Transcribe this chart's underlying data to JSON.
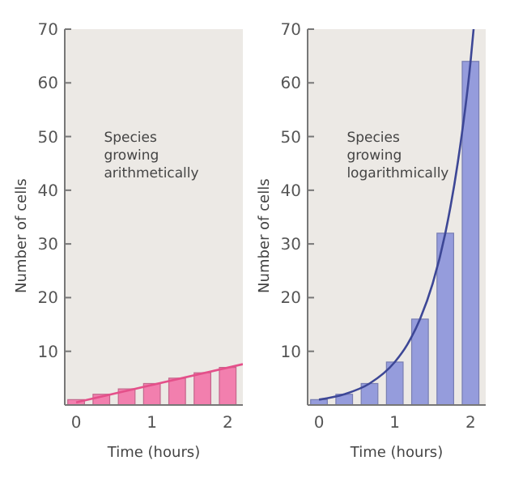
{
  "chart_data": [
    {
      "type": "bar",
      "ylabel": "Number of cells",
      "xlabel": "Time (hours)",
      "annotations": [
        "Species growing arithmetically"
      ],
      "xlim": [
        -0.15,
        2.2
      ],
      "xticks": [
        0,
        1,
        2
      ],
      "ylim": [
        0,
        70
      ],
      "yticks": [
        10,
        20,
        30,
        40,
        50,
        60,
        70
      ],
      "grid": false,
      "series": [
        {
          "color": "#f27fae",
          "x": [
            0,
            0.333,
            0.667,
            1,
            1.333,
            1.667,
            2
          ],
          "values": [
            1,
            2,
            3,
            4,
            5,
            6,
            7
          ]
        },
        {
          "type": "line",
          "color": "#e4508a",
          "x": [
            0,
            2.2
          ],
          "values": [
            0.5,
            7.6
          ]
        }
      ]
    },
    {
      "type": "bar",
      "ylabel": "Number of cells",
      "xlabel": "Time (hours)",
      "annotations": [
        "Species growing logarithmically"
      ],
      "xlim": [
        -0.15,
        2.2
      ],
      "xticks": [
        0,
        1,
        2
      ],
      "ylim": [
        0,
        70
      ],
      "yticks": [
        10,
        20,
        30,
        40,
        50,
        60,
        70
      ],
      "grid": false,
      "series": [
        {
          "color": "#959cdc",
          "x": [
            0,
            0.333,
            0.667,
            1,
            1.333,
            1.667,
            2
          ],
          "values": [
            1,
            2,
            4,
            8,
            16,
            32,
            64
          ]
        },
        {
          "type": "line",
          "color": "#3d4796",
          "x": [
            0,
            0.333,
            0.667,
            1,
            1.167,
            1.333,
            1.5,
            1.667,
            1.833,
            2,
            2.04
          ],
          "values": [
            1,
            2,
            4,
            8,
            11.3,
            16,
            22.6,
            32,
            45.3,
            64,
            70
          ]
        }
      ]
    }
  ]
}
